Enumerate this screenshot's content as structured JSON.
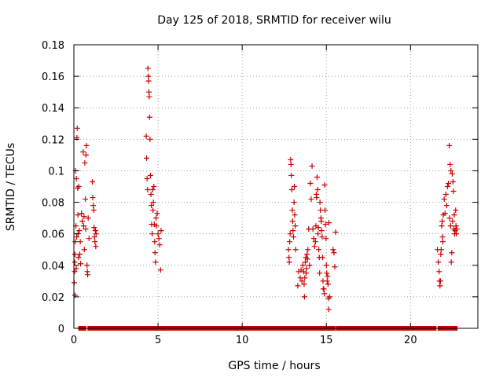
{
  "chart_data": {
    "type": "scatter",
    "title": "Day 125 of 2018, SRMTID for receiver wilu",
    "xlabel": "GPS time / hours",
    "ylabel": "SRMTID / TECUs",
    "xlim": [
      0,
      24
    ],
    "ylim": [
      0,
      0.18
    ],
    "xticks": [
      0,
      5,
      10,
      15,
      20
    ],
    "xtick_labels": [
      "0",
      "5",
      "10",
      "15",
      "20"
    ],
    "yticks": [
      0,
      0.02,
      0.04,
      0.06,
      0.08,
      0.1,
      0.12,
      0.14,
      0.16,
      0.18
    ],
    "ytick_labels": [
      "0",
      "0.02",
      "0.04",
      "0.06",
      "0.08",
      "0.1",
      "0.12",
      "0.14",
      "0.16",
      "0.18"
    ],
    "grid": true,
    "marker": "+",
    "color": "#cc0000",
    "series": [
      {
        "name": "SRMTID",
        "points": [
          [
            0.02,
            0.029
          ],
          [
            0.04,
            0.036
          ],
          [
            0.05,
            0.042
          ],
          [
            0.06,
            0.047
          ],
          [
            0.07,
            0.021
          ],
          [
            0.08,
            0.055
          ],
          [
            0.1,
            0.1
          ],
          [
            0.12,
            0.065
          ],
          [
            0.14,
            0.038
          ],
          [
            0.15,
            0.095
          ],
          [
            0.17,
            0.058
          ],
          [
            0.18,
            0.121
          ],
          [
            0.2,
            0.127
          ],
          [
            0.22,
            0.089
          ],
          [
            0.24,
            0.072
          ],
          [
            0.25,
            0.06
          ],
          [
            0.27,
            0.045
          ],
          [
            0.29,
            0.09
          ],
          [
            0.32,
            0.062
          ],
          [
            0.35,
            0.047
          ],
          [
            0.38,
            0.055
          ],
          [
            0.4,
            0.041
          ],
          [
            0.45,
            0.073
          ],
          [
            0.5,
            0.068
          ],
          [
            0.55,
            0.112
          ],
          [
            0.58,
            0.065
          ],
          [
            0.6,
            0.071
          ],
          [
            0.62,
            0.05
          ],
          [
            0.65,
            0.105
          ],
          [
            0.68,
            0.082
          ],
          [
            0.7,
            0.063
          ],
          [
            0.72,
            0.11
          ],
          [
            0.75,
            0.116
          ],
          [
            0.78,
            0.04
          ],
          [
            0.8,
            0.036
          ],
          [
            0.82,
            0.034
          ],
          [
            0.85,
            0.07
          ],
          [
            0.9,
            0.057
          ],
          [
            1.1,
            0.093
          ],
          [
            1.12,
            0.083
          ],
          [
            1.15,
            0.078
          ],
          [
            1.18,
            0.075
          ],
          [
            1.2,
            0.064
          ],
          [
            1.22,
            0.058
          ],
          [
            1.25,
            0.055
          ],
          [
            1.28,
            0.062
          ],
          [
            1.3,
            0.052
          ],
          [
            1.32,
            0.06
          ],
          [
            4.3,
            0.122
          ],
          [
            4.32,
            0.108
          ],
          [
            4.35,
            0.095
          ],
          [
            4.38,
            0.088
          ],
          [
            4.4,
            0.165
          ],
          [
            4.42,
            0.16
          ],
          [
            4.44,
            0.157
          ],
          [
            4.46,
            0.15
          ],
          [
            4.48,
            0.147
          ],
          [
            4.5,
            0.134
          ],
          [
            4.52,
            0.12
          ],
          [
            4.55,
            0.097
          ],
          [
            4.58,
            0.085
          ],
          [
            4.6,
            0.078
          ],
          [
            4.62,
            0.066
          ],
          [
            4.65,
            0.06
          ],
          [
            4.68,
            0.088
          ],
          [
            4.7,
            0.075
          ],
          [
            4.72,
            0.08
          ],
          [
            4.75,
            0.09
          ],
          [
            4.78,
            0.066
          ],
          [
            4.8,
            0.055
          ],
          [
            4.82,
            0.048
          ],
          [
            4.85,
            0.042
          ],
          [
            4.88,
            0.07
          ],
          [
            4.9,
            0.065
          ],
          [
            4.95,
            0.073
          ],
          [
            5.0,
            0.06
          ],
          [
            5.05,
            0.057
          ],
          [
            5.1,
            0.053
          ],
          [
            5.15,
            0.037
          ],
          [
            5.18,
            0.062
          ],
          [
            12.75,
            0.05
          ],
          [
            12.78,
            0.045
          ],
          [
            12.8,
            0.042
          ],
          [
            12.82,
            0.055
          ],
          [
            12.85,
            0.06
          ],
          [
            12.88,
            0.107
          ],
          [
            12.9,
            0.104
          ],
          [
            12.92,
            0.097
          ],
          [
            12.95,
            0.088
          ],
          [
            12.98,
            0.075
          ],
          [
            13.0,
            0.068
          ],
          [
            13.02,
            0.062
          ],
          [
            13.05,
            0.058
          ],
          [
            13.08,
            0.08
          ],
          [
            13.1,
            0.09
          ],
          [
            13.12,
            0.072
          ],
          [
            13.15,
            0.065
          ],
          [
            13.18,
            0.05
          ],
          [
            13.3,
            0.027
          ],
          [
            13.35,
            0.036
          ],
          [
            13.45,
            0.032
          ],
          [
            13.5,
            0.037
          ],
          [
            13.55,
            0.03
          ],
          [
            13.6,
            0.04
          ],
          [
            13.65,
            0.036
          ],
          [
            13.68,
            0.028
          ],
          [
            13.7,
            0.02
          ],
          [
            13.72,
            0.032
          ],
          [
            13.75,
            0.042
          ],
          [
            13.78,
            0.045
          ],
          [
            13.8,
            0.035
          ],
          [
            13.82,
            0.038
          ],
          [
            13.85,
            0.047
          ],
          [
            13.88,
            0.044
          ],
          [
            13.9,
            0.05
          ],
          [
            13.95,
            0.063
          ],
          [
            14.0,
            0.04
          ],
          [
            14.05,
            0.092
          ],
          [
            14.1,
            0.082
          ],
          [
            14.15,
            0.103
          ],
          [
            14.2,
            0.063
          ],
          [
            14.25,
            0.057
          ],
          [
            14.3,
            0.052
          ],
          [
            14.35,
            0.055
          ],
          [
            14.38,
            0.065
          ],
          [
            14.4,
            0.085
          ],
          [
            14.42,
            0.083
          ],
          [
            14.45,
            0.096
          ],
          [
            14.48,
            0.088
          ],
          [
            14.5,
            0.06
          ],
          [
            14.52,
            0.064
          ],
          [
            14.55,
            0.05
          ],
          [
            14.58,
            0.045
          ],
          [
            14.6,
            0.035
          ],
          [
            14.62,
            0.08
          ],
          [
            14.65,
            0.075
          ],
          [
            14.68,
            0.07
          ],
          [
            14.7,
            0.068
          ],
          [
            14.72,
            0.062
          ],
          [
            14.75,
            0.058
          ],
          [
            14.78,
            0.045
          ],
          [
            14.8,
            0.03
          ],
          [
            14.82,
            0.025
          ],
          [
            14.85,
            0.025
          ],
          [
            14.88,
            0.022
          ],
          [
            14.9,
            0.091
          ],
          [
            14.92,
            0.075
          ],
          [
            14.95,
            0.066
          ],
          [
            14.98,
            0.057
          ],
          [
            15.0,
            0.04
          ],
          [
            15.02,
            0.035
          ],
          [
            15.05,
            0.03
          ],
          [
            15.08,
            0.033
          ],
          [
            15.1,
            0.028
          ],
          [
            15.12,
            0.019
          ],
          [
            15.14,
            0.012
          ],
          [
            15.15,
            0.067
          ],
          [
            15.2,
            0.02
          ],
          [
            15.4,
            0.05
          ],
          [
            15.45,
            0.048
          ],
          [
            15.5,
            0.039
          ],
          [
            15.55,
            0.061
          ],
          [
            21.6,
            0.05
          ],
          [
            21.65,
            0.042
          ],
          [
            21.7,
            0.036
          ],
          [
            21.72,
            0.03
          ],
          [
            21.75,
            0.027
          ],
          [
            21.78,
            0.03
          ],
          [
            21.8,
            0.047
          ],
          [
            21.82,
            0.05
          ],
          [
            21.85,
            0.065
          ],
          [
            21.88,
            0.068
          ],
          [
            21.9,
            0.058
          ],
          [
            21.92,
            0.055
          ],
          [
            21.95,
            0.072
          ],
          [
            22.0,
            0.082
          ],
          [
            22.05,
            0.073
          ],
          [
            22.1,
            0.085
          ],
          [
            22.15,
            0.078
          ],
          [
            22.2,
            0.09
          ],
          [
            22.25,
            0.092
          ],
          [
            22.3,
            0.116
          ],
          [
            22.32,
            0.07
          ],
          [
            22.35,
            0.104
          ],
          [
            22.38,
            0.065
          ],
          [
            22.4,
            0.1
          ],
          [
            22.42,
            0.042
          ],
          [
            22.45,
            0.048
          ],
          [
            22.48,
            0.098
          ],
          [
            22.5,
            0.068
          ],
          [
            22.52,
            0.093
          ],
          [
            22.55,
            0.087
          ],
          [
            22.58,
            0.063
          ],
          [
            22.6,
            0.072
          ],
          [
            22.62,
            0.06
          ],
          [
            22.65,
            0.062
          ],
          [
            22.68,
            0.075
          ],
          [
            22.7,
            0.065
          ],
          [
            22.72,
            0.06
          ],
          [
            22.75,
            0.063
          ]
        ]
      }
    ],
    "zero_band": {
      "y": 0,
      "ranges": [
        [
          0.4,
          0.6
        ],
        [
          0.95,
          1.2
        ],
        [
          1.45,
          13.05
        ],
        [
          13.15,
          13.4
        ],
        [
          13.55,
          14.05
        ],
        [
          14.25,
          14.85
        ],
        [
          15.05,
          15.4
        ],
        [
          15.7,
          21.4
        ],
        [
          21.75,
          22.05
        ],
        [
          22.25,
          22.65
        ]
      ]
    }
  }
}
